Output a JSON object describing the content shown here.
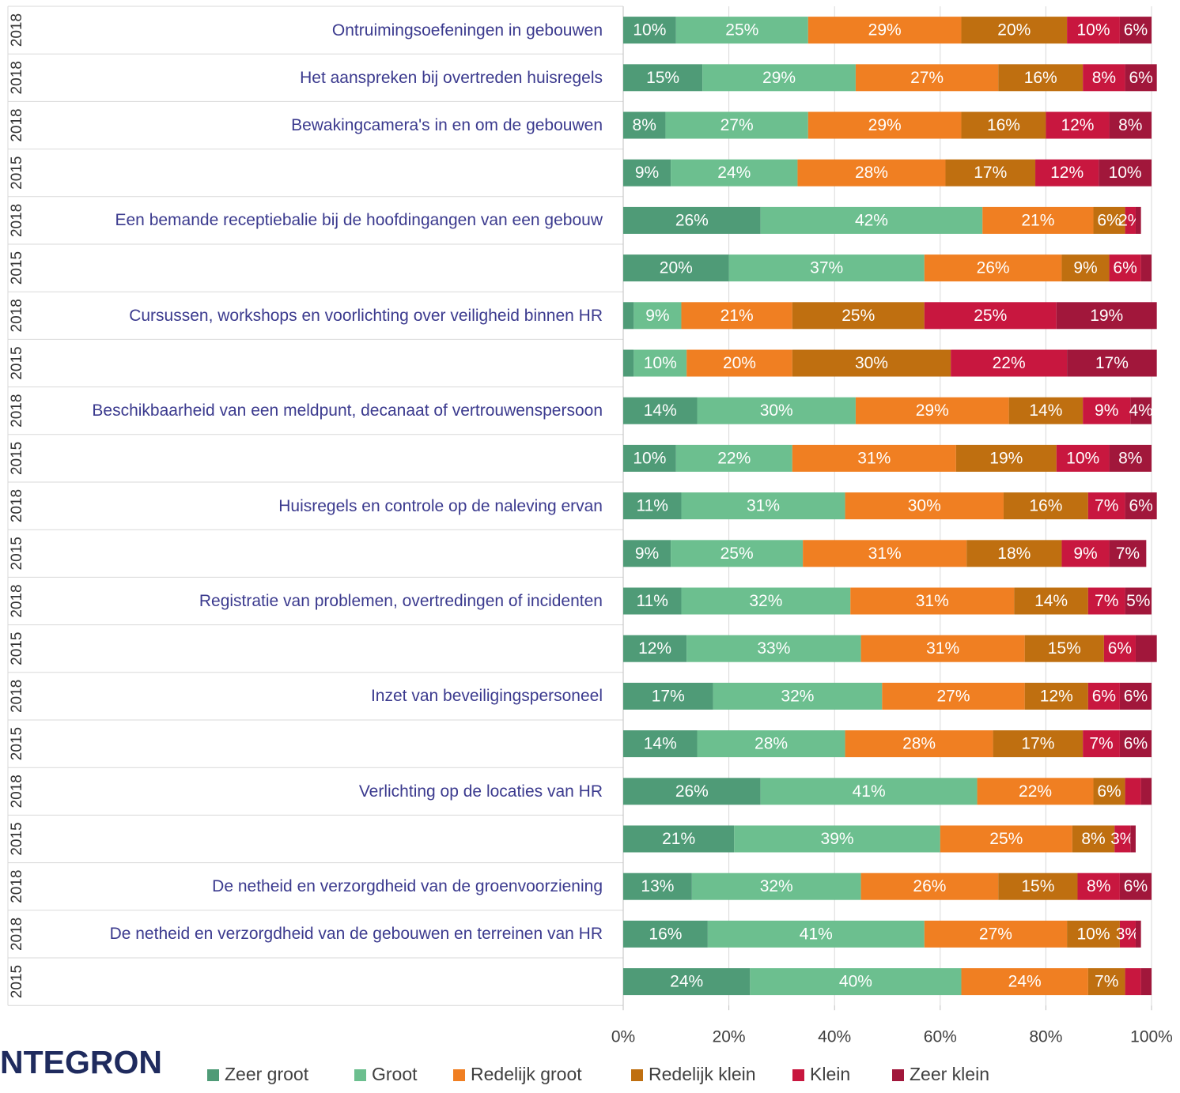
{
  "chart_data": {
    "type": "stacked_barh",
    "logo": "NTEGRON",
    "years": [
      "2018",
      "2018",
      "2018",
      "2015",
      "2018",
      "2015",
      "2018",
      "2015",
      "2018",
      "2015",
      "2018",
      "2015",
      "2018",
      "2015",
      "2018",
      "2015",
      "2018",
      "2015",
      "2018",
      "2018",
      "2015"
    ],
    "categories": [
      "Ontruimingsoefeningen in gebouwen",
      "Het aanspreken bij overtreden huisregels",
      "Bewakingcamera's in en om de gebouwen",
      null,
      "Een bemande receptiebalie bij de hoofdingangen van een gebouw",
      null,
      "Cursussen, workshops en voorlichting over veiligheid binnen HR",
      null,
      "Beschikbaarheid van een meldpunt, decanaat of vertrouwenspersoon",
      null,
      "Huisregels en controle op de naleving ervan",
      null,
      "Registratie van problemen, overtredingen of incidenten",
      null,
      "Inzet van beveiligingspersoneel",
      null,
      "Verlichting op de locaties van HR",
      null,
      "De netheid en verzorgdheid van de groenvoorziening",
      "De netheid en verzorgdheid van de gebouwen en terreinen van HR",
      null
    ],
    "series": [
      {
        "name": "Zeer groot",
        "color": "#4f9b77",
        "values": [
          10,
          15,
          8,
          9,
          26,
          20,
          2,
          2,
          14,
          10,
          11,
          9,
          11,
          12,
          17,
          14,
          26,
          21,
          13,
          16,
          24
        ],
        "value_labels": [
          "10%",
          "15%",
          "8%",
          "9%",
          "26%",
          "20%",
          null,
          null,
          "14%",
          "10%",
          "11%",
          "9%",
          "11%",
          "12%",
          "17%",
          "14%",
          "26%",
          "21%",
          "13%",
          "16%",
          "24%"
        ]
      },
      {
        "name": "Groot",
        "color": "#6cbf8f",
        "values": [
          25,
          29,
          27,
          24,
          42,
          37,
          9,
          10,
          30,
          22,
          31,
          25,
          32,
          33,
          32,
          28,
          41,
          39,
          32,
          41,
          40
        ],
        "value_labels": [
          "25%",
          "29%",
          "27%",
          "24%",
          "42%",
          "37%",
          "9%",
          "10%",
          "30%",
          "22%",
          "31%",
          "25%",
          "32%",
          "33%",
          "32%",
          "28%",
          "41%",
          "39%",
          "32%",
          "41%",
          "40%"
        ]
      },
      {
        "name": "Redelijk groot",
        "color": "#f07f22",
        "values": [
          29,
          27,
          29,
          28,
          21,
          26,
          21,
          20,
          29,
          31,
          30,
          31,
          31,
          31,
          27,
          28,
          22,
          25,
          26,
          27,
          24
        ],
        "value_labels": [
          "29%",
          "27%",
          "29%",
          "28%",
          "21%",
          "26%",
          "21%",
          "20%",
          "29%",
          "31%",
          "30%",
          "31%",
          "31%",
          "31%",
          "27%",
          "28%",
          "22%",
          "25%",
          "26%",
          "27%",
          "24%"
        ]
      },
      {
        "name": "Redelijk klein",
        "color": "#bf6f10",
        "values": [
          20,
          16,
          16,
          17,
          6,
          9,
          25,
          30,
          14,
          19,
          16,
          18,
          14,
          15,
          12,
          17,
          6,
          8,
          15,
          10,
          7
        ],
        "value_labels": [
          "20%",
          "16%",
          "16%",
          "17%",
          "6%",
          "9%",
          "25%",
          "30%",
          "14%",
          "19%",
          "16%",
          "18%",
          "14%",
          "15%",
          "12%",
          "17%",
          "6%",
          "8%",
          "15%",
          "10%",
          "7%"
        ]
      },
      {
        "name": "Klein",
        "color": "#c8173f",
        "values": [
          10,
          8,
          12,
          12,
          2,
          6,
          25,
          22,
          9,
          10,
          7,
          9,
          7,
          6,
          6,
          7,
          3,
          3,
          8,
          3,
          3
        ],
        "value_labels": [
          "10%",
          "8%",
          "12%",
          "12%",
          "2%",
          "6%",
          "25%",
          "22%",
          "9%",
          "10%",
          "7%",
          "9%",
          "7%",
          "6%",
          "6%",
          "7%",
          null,
          "3%",
          "8%",
          "3%",
          null
        ]
      },
      {
        "name": "Zeer klein",
        "color": "#a1173b",
        "values": [
          6,
          6,
          8,
          10,
          1,
          2,
          19,
          17,
          4,
          8,
          6,
          7,
          5,
          4,
          6,
          6,
          2,
          1,
          6,
          1,
          2
        ],
        "value_labels": [
          "6%",
          "6%",
          "8%",
          "10%",
          null,
          null,
          "19%",
          "17%",
          "4%",
          "8%",
          "6%",
          "7%",
          "5%",
          null,
          "6%",
          "6%",
          null,
          null,
          "6%",
          null,
          null
        ]
      }
    ],
    "xlim": [
      0,
      100
    ],
    "xticks": [
      {
        "value": 0,
        "label": "0%"
      },
      {
        "value": 20,
        "label": "20%"
      },
      {
        "value": 40,
        "label": "40%"
      },
      {
        "value": 60,
        "label": "60%"
      },
      {
        "value": 80,
        "label": "80%"
      },
      {
        "value": 100,
        "label": "100%"
      }
    ],
    "grid": true
  }
}
